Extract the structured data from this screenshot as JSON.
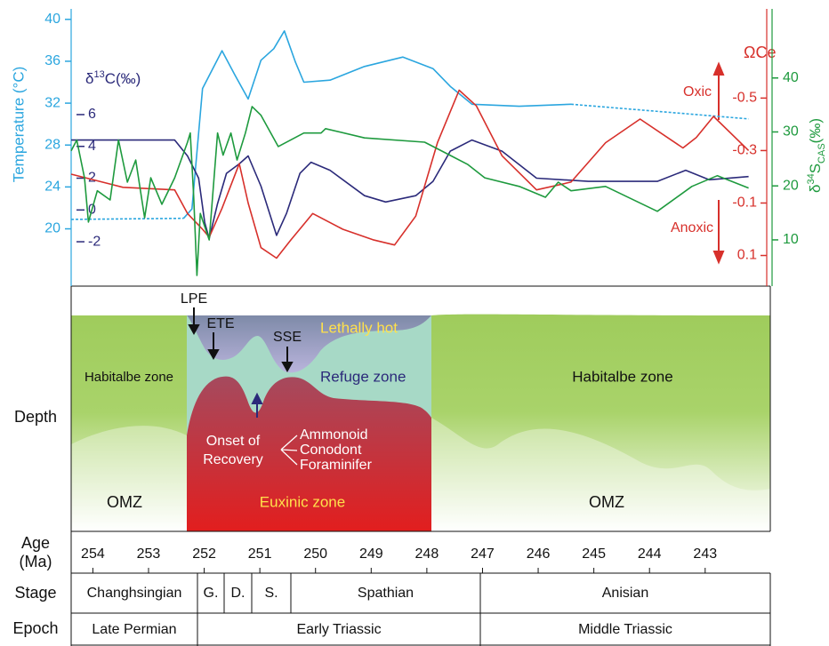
{
  "chart_data": {
    "type": "line",
    "xlim": [
      254.39,
      241.83
    ],
    "xticks": [
      254,
      253,
      252,
      251,
      250,
      249,
      248,
      247,
      246,
      245,
      244,
      243
    ],
    "xlabel": [
      "Age",
      "(Ma)"
    ],
    "axes": [
      {
        "label": "Temperature (°C)",
        "color": "#2ba6df",
        "lim": [
          14.7,
          41
        ],
        "ticks": [
          20,
          24,
          28,
          32,
          36,
          40
        ]
      },
      {
        "label_parts": [
          "δ",
          "13",
          "C(‰)"
        ],
        "color": "#2b2a7a",
        "lim": [
          -4.68,
          12.65
        ],
        "ticks": [
          -2,
          0,
          2,
          4,
          6
        ]
      },
      {
        "label": "ΩCe",
        "color": "#d7302b",
        "lim": [
          0.21,
          -0.84
        ],
        "ticks": [
          -0.5,
          -0.3,
          -0.1,
          0.1
        ]
      },
      {
        "label_parts": [
          "δ",
          "34",
          "S",
          "CAS",
          "(‰)"
        ],
        "color": "#1e9a3e",
        "lim": [
          1.76,
          52.8
        ],
        "ticks": [
          10,
          20,
          30,
          40
        ]
      }
    ],
    "series": [
      {
        "axis": 0,
        "color": "#2ba6df",
        "dashed": true,
        "x": [
          254.39,
          252.37
        ],
        "values": [
          20.9,
          21.0
        ]
      },
      {
        "axis": 0,
        "color": "#2ba6df",
        "dashed": false,
        "x": [
          252.37,
          252.22,
          252.03,
          251.68,
          251.45,
          251.21,
          250.98,
          250.75,
          250.56,
          250.36,
          250.21,
          249.74,
          249.12,
          248.43,
          247.89,
          247.58,
          247.19,
          246.34,
          245.41
        ],
        "values": [
          21.0,
          21.9,
          33.4,
          37.0,
          34.7,
          32.4,
          36.1,
          37.2,
          38.9,
          35.9,
          34.0,
          34.2,
          35.5,
          36.4,
          35.3,
          33.6,
          31.9,
          31.7,
          31.9
        ]
      },
      {
        "axis": 0,
        "color": "#2ba6df",
        "dashed": true,
        "x": [
          245.41,
          242.22
        ],
        "values": [
          31.9,
          30.5
        ]
      },
      {
        "axis": 1,
        "color": "#2b2a7a",
        "dashed": false,
        "x": [
          254.39,
          252.53,
          252.3,
          252.1,
          251.99,
          251.91,
          251.76,
          251.6,
          251.37,
          251.21,
          250.98,
          250.7,
          250.52,
          250.28,
          250.08,
          249.74,
          249.12,
          248.74,
          248.2,
          247.89,
          247.58,
          247.19,
          246.65,
          246.03,
          245.1,
          243.86,
          243.35,
          242.93,
          242.22
        ],
        "values": [
          4.4,
          4.4,
          3.4,
          2.0,
          -0.8,
          -1.8,
          0.4,
          2.3,
          2.9,
          3.4,
          1.5,
          -1.6,
          -0.2,
          2.3,
          3.0,
          2.5,
          0.9,
          0.5,
          0.9,
          1.8,
          3.7,
          4.4,
          3.7,
          2.0,
          1.8,
          1.8,
          2.5,
          1.9,
          2.1
        ]
      },
      {
        "axis": 2,
        "color": "#d7302b",
        "dashed": false,
        "x": [
          254.39,
          253.46,
          252.53,
          252.3,
          252.03,
          251.91,
          251.68,
          251.37,
          251.21,
          250.98,
          250.7,
          250.44,
          250.05,
          249.51,
          248.97,
          248.58,
          248.2,
          247.81,
          247.42,
          247.11,
          246.65,
          246.03,
          245.41,
          244.79,
          244.17,
          243.4,
          243.16,
          242.85,
          242.22
        ],
        "values": [
          -0.21,
          -0.16,
          -0.15,
          -0.06,
          0,
          0.03,
          -0.08,
          -0.25,
          -0.1,
          0.07,
          0.11,
          0.04,
          -0.06,
          0,
          0.04,
          0.06,
          -0.05,
          -0.33,
          -0.53,
          -0.47,
          -0.28,
          -0.15,
          -0.18,
          -0.33,
          -0.42,
          -0.31,
          -0.35,
          -0.43,
          -0.3
        ]
      },
      {
        "axis": 3,
        "color": "#1e9a3e",
        "dashed": false,
        "x": [
          254.39,
          254.29,
          254.15,
          254.08,
          253.92,
          253.69,
          253.54,
          253.38,
          253.23,
          253.07,
          252.96,
          252.76,
          252.53,
          252.3,
          252.25,
          252.19,
          252.13,
          252.07,
          251.91,
          251.76,
          251.66,
          251.52,
          251.41,
          251.26,
          251.14,
          250.98,
          250.67,
          250.21,
          249.9,
          249.82,
          249.12,
          248.04,
          247.27,
          246.96,
          246.34,
          245.87,
          245.64,
          245.41,
          244.79,
          243.86,
          243.24,
          242.78,
          242.22
        ],
        "values": [
          26.5,
          28.5,
          21.5,
          13.3,
          19.1,
          17.4,
          28.5,
          20.7,
          24.8,
          14.1,
          21.5,
          16.6,
          21.5,
          28.1,
          29.8,
          18.2,
          3.4,
          14.9,
          10,
          29.8,
          25.7,
          29.8,
          24.8,
          29.8,
          34.7,
          33.1,
          27.3,
          29.8,
          29.8,
          30.6,
          28.9,
          28.1,
          24.0,
          21.5,
          19.9,
          17.9,
          20.7,
          19.1,
          19.9,
          15.3,
          19.9,
          21.9,
          19.6
        ]
      }
    ],
    "annotations": {
      "oxic": "Oxic",
      "anoxic": "Anoxic",
      "depth": "Depth",
      "lpe": "LPE",
      "ete": "ETE",
      "sse": "SSE",
      "lethally_hot": "Lethally hot",
      "refuge_zone": "Refuge zone",
      "habitable_left": "Habitalbe zone",
      "habitable_right": "Habitalbe zone",
      "onset": [
        "Onset of",
        "Recovery"
      ],
      "groups": [
        "Ammonoid",
        "Conodont",
        "Foraminifer"
      ],
      "omz_left": "OMZ",
      "omz_right": "OMZ",
      "euxinic_zone": "Euxinic zone"
    },
    "stage_label": "Stage",
    "stages": [
      "Changhsingian",
      "G.",
      "D.",
      "S.",
      "Spathian",
      "Anisian"
    ],
    "epoch_label": "Epoch",
    "epochs": [
      "Late Permian",
      "Early Triassic",
      "Middle Triassic"
    ]
  }
}
